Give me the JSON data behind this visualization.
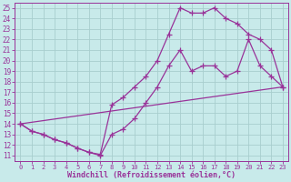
{
  "xlabel": "Windchill (Refroidissement éolien,°C)",
  "bg_color": "#c8eaea",
  "grid_color": "#a8cece",
  "line_color": "#993399",
  "xlim": [
    -0.5,
    23.5
  ],
  "ylim": [
    10.5,
    25.5
  ],
  "xticks": [
    0,
    1,
    2,
    3,
    4,
    5,
    6,
    7,
    8,
    9,
    10,
    11,
    12,
    13,
    14,
    15,
    16,
    17,
    18,
    19,
    20,
    21,
    22,
    23
  ],
  "yticks": [
    11,
    12,
    13,
    14,
    15,
    16,
    17,
    18,
    19,
    20,
    21,
    22,
    23,
    24,
    25
  ],
  "line1_x": [
    0,
    1,
    2,
    3,
    4,
    5,
    6,
    7,
    8,
    9,
    10,
    11,
    12,
    13,
    14,
    15,
    16,
    17,
    18,
    19,
    20,
    21,
    22,
    23
  ],
  "line1_y": [
    14,
    13.3,
    13,
    12.5,
    12.2,
    11.7,
    11.3,
    11.0,
    13.0,
    13.5,
    14.5,
    16.0,
    17.5,
    19.5,
    21.0,
    19.0,
    19.5,
    19.5,
    18.5,
    19.0,
    22.0,
    19.5,
    18.5,
    17.5
  ],
  "line2_x": [
    0,
    1,
    2,
    3,
    4,
    5,
    6,
    7,
    8,
    9,
    10,
    11,
    12,
    13,
    14,
    15,
    16,
    17,
    18,
    19,
    20,
    21,
    22,
    23
  ],
  "line2_y": [
    14,
    13.3,
    13,
    12.5,
    12.2,
    11.7,
    11.3,
    11.1,
    15.8,
    16.5,
    17.5,
    18.5,
    20.0,
    22.5,
    25.0,
    24.5,
    24.5,
    25.0,
    24.0,
    23.5,
    22.5,
    22.0,
    21.0,
    17.5
  ],
  "line3_x": [
    0,
    23
  ],
  "line3_y": [
    14,
    17.5
  ]
}
